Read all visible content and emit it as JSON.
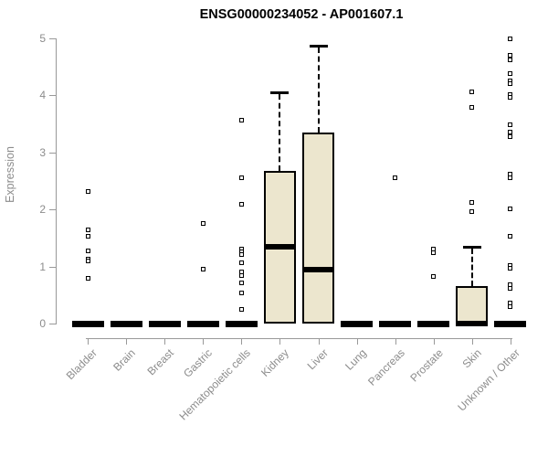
{
  "title": "ENSG00000234052 - AP001607.1",
  "y_axis": {
    "label": "Expression"
  },
  "chart_data": {
    "type": "boxplot",
    "title": "ENSG00000234052 - AP001607.1",
    "xlabel": "",
    "ylabel": "Expression",
    "ylim": [
      0,
      5
    ],
    "y_ticks": [
      0,
      1,
      2,
      3,
      4,
      5
    ],
    "grid": false,
    "x_tick_rotation": 45,
    "legend": "none",
    "box_fill_color": "#ece6ce",
    "box_border_color": "#000000",
    "axis_color": "#999999",
    "tick_label_color": "#8c8c8c",
    "categories": [
      "Bladder",
      "Brain",
      "Breast",
      "Gastric",
      "Hematopoietic cells",
      "Kidney",
      "Liver",
      "Lung",
      "Pancreas",
      "Prostate",
      "Skin",
      "Unknown / Other"
    ],
    "series": [
      {
        "category": "Bladder",
        "whisker_low": 0,
        "q1": 0,
        "median": 0,
        "q3": 0,
        "whisker_high": 0,
        "outliers": [
          2.31,
          1.65,
          1.53,
          1.28,
          1.13,
          1.09,
          0.79
        ]
      },
      {
        "category": "Brain",
        "whisker_low": 0,
        "q1": 0,
        "median": 0,
        "q3": 0,
        "whisker_high": 0,
        "outliers": []
      },
      {
        "category": "Breast",
        "whisker_low": 0,
        "q1": 0,
        "median": 0,
        "q3": 0,
        "whisker_high": 0,
        "outliers": []
      },
      {
        "category": "Gastric",
        "whisker_low": 0,
        "q1": 0,
        "median": 0,
        "q3": 0,
        "whisker_high": 0,
        "outliers": [
          1.76,
          0.95
        ]
      },
      {
        "category": "Hematopoietic cells",
        "whisker_low": 0,
        "q1": 0,
        "median": 0,
        "q3": 0,
        "whisker_high": 0,
        "outliers": [
          3.57,
          2.55,
          2.09,
          1.31,
          1.26,
          1.21,
          1.06,
          0.9,
          0.84,
          0.71,
          0.54,
          0.25
        ]
      },
      {
        "category": "Kidney",
        "whisker_low": 0,
        "q1": 0,
        "median": 1.35,
        "q3": 2.68,
        "whisker_high": 4.06,
        "outliers": []
      },
      {
        "category": "Liver",
        "whisker_low": 0,
        "q1": 0,
        "median": 0.95,
        "q3": 3.35,
        "whisker_high": 4.87,
        "outliers": []
      },
      {
        "category": "Lung",
        "whisker_low": 0,
        "q1": 0,
        "median": 0,
        "q3": 0,
        "whisker_high": 0,
        "outliers": []
      },
      {
        "category": "Pancreas",
        "whisker_low": 0,
        "q1": 0,
        "median": 0,
        "q3": 0,
        "whisker_high": 0,
        "outliers": [
          2.55
        ]
      },
      {
        "category": "Prostate",
        "whisker_low": 0,
        "q1": 0,
        "median": 0,
        "q3": 0,
        "whisker_high": 0,
        "outliers": [
          1.3,
          1.24,
          0.82
        ]
      },
      {
        "category": "Skin",
        "whisker_low": 0,
        "q1": 0,
        "median": 0,
        "q3": 0.66,
        "whisker_high": 1.35,
        "outliers": [
          4.06,
          3.79,
          2.12,
          1.96
        ]
      },
      {
        "category": "Unknown / Other",
        "whisker_low": 0,
        "q1": 0,
        "median": 0,
        "q3": 0,
        "whisker_high": 0,
        "outliers": [
          4.99,
          4.71,
          4.63,
          4.39,
          4.26,
          4.21,
          4.02,
          3.97,
          3.49,
          3.35,
          3.28,
          2.62,
          2.56,
          2.01,
          1.53,
          1.02,
          0.97,
          0.68,
          0.62,
          0.36,
          0.3
        ]
      }
    ]
  }
}
